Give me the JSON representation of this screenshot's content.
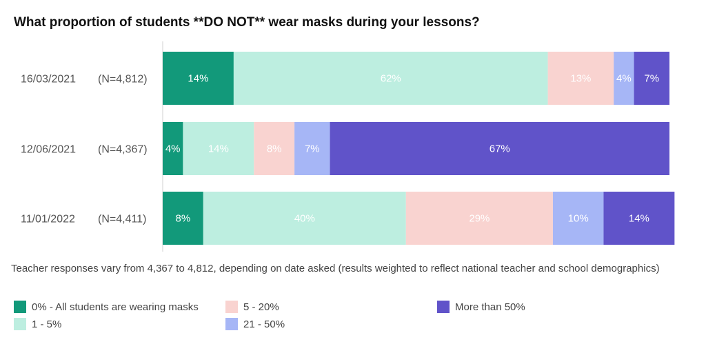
{
  "chart_data": {
    "type": "bar",
    "orientation": "horizontal",
    "stacked": true,
    "title": "What proportion of students **DO NOT** wear masks during your lessons?",
    "categories": [
      "16/03/2021",
      "12/06/2021",
      "11/01/2022"
    ],
    "sample_sizes": [
      "(N=4,812)",
      "(N=4,367)",
      "(N=4,411)"
    ],
    "series": [
      {
        "name": "0% - All students are wearing masks",
        "color": "#12997a",
        "values": [
          14,
          4,
          8
        ],
        "labels": [
          "14%",
          "4%",
          "8%"
        ],
        "label_color": "#ffffff"
      },
      {
        "name": "1 - 5%",
        "color": "#bdeee0",
        "values": [
          62,
          14,
          40
        ],
        "labels": [
          "62%",
          "14%",
          "40%"
        ],
        "label_color": "#ffffff"
      },
      {
        "name": "5 - 20%",
        "color": "#f9d3d0",
        "values": [
          13,
          8,
          29
        ],
        "labels": [
          "13%",
          "8%",
          "29%"
        ],
        "label_color": "#ffffff"
      },
      {
        "name": "21 - 50%",
        "color": "#a6b6f6",
        "values": [
          4,
          7,
          10
        ],
        "labels": [
          "4%",
          "7%",
          "10%"
        ],
        "label_color": "#ffffff"
      },
      {
        "name": "More than 50%",
        "color": "#6053c9",
        "values": [
          7,
          67,
          14
        ],
        "labels": [
          "7%",
          "67%",
          "14%"
        ],
        "label_color": "#ffffff"
      }
    ],
    "xlim": [
      0,
      100
    ],
    "grid": false,
    "legend_position": "bottom"
  },
  "footnote": "Teacher responses vary from 4,367 to 4,812, depending on date asked (results weighted to reflect national teacher and school demographics)"
}
